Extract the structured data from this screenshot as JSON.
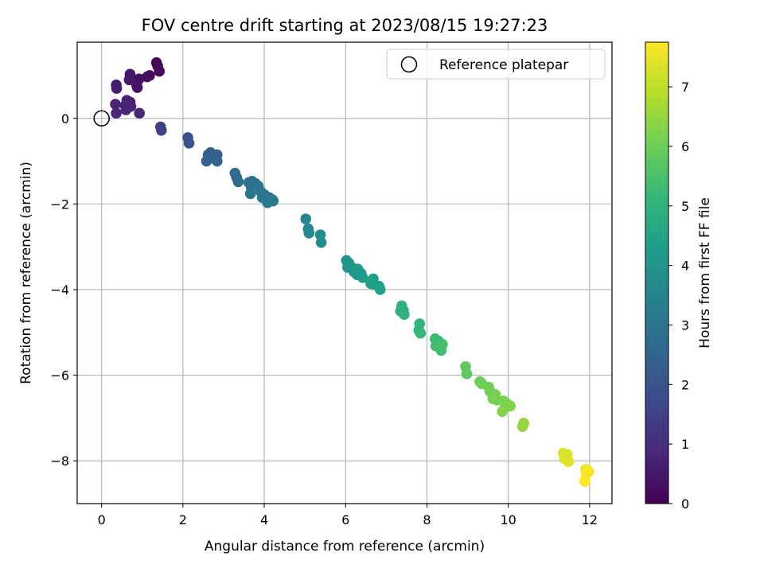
{
  "chart_data": {
    "type": "scatter",
    "title": "FOV centre drift starting at 2023/08/15 19:27:23",
    "xlabel": "Angular distance from reference (arcmin)",
    "ylabel": "Rotation from reference (arcmin)",
    "xlim": [
      -0.6,
      12.55
    ],
    "ylim": [
      -9.0,
      1.78
    ],
    "x_ticks": [
      0,
      2,
      4,
      6,
      8,
      10,
      12
    ],
    "x_tick_labels": [
      "0",
      "2",
      "4",
      "6",
      "8",
      "10",
      "12"
    ],
    "y_ticks": [
      0,
      -2,
      -4,
      -6,
      -8
    ],
    "y_tick_labels": [
      "0",
      "−2",
      "−4",
      "−6",
      "−8"
    ],
    "grid": true,
    "legend": {
      "position": "upper right",
      "entries": [
        {
          "label": "Reference platepar",
          "marker": "open-circle"
        }
      ]
    },
    "reference_point": {
      "x": 0,
      "y": 0
    },
    "colorbar": {
      "label": "Hours from first FF file",
      "colormap": "viridis",
      "min": 0,
      "max": 7.75,
      "ticks": [
        0,
        1,
        2,
        3,
        4,
        5,
        6,
        7
      ],
      "tick_labels": [
        "0",
        "1",
        "2",
        "3",
        "4",
        "5",
        "6",
        "7"
      ],
      "colors": [
        "#440154",
        "#482878",
        "#3e4989",
        "#31688e",
        "#26828e",
        "#1f9e89",
        "#35b779",
        "#6ece58",
        "#b5de2b",
        "#fde725"
      ]
    },
    "points": [
      {
        "x": 1.35,
        "y": 1.3,
        "t": 0.05
      },
      {
        "x": 1.38,
        "y": 1.22,
        "t": 0.1
      },
      {
        "x": 1.42,
        "y": 1.1,
        "t": 0.15
      },
      {
        "x": 1.18,
        "y": 1.0,
        "t": 0.2
      },
      {
        "x": 1.12,
        "y": 0.97,
        "t": 0.25
      },
      {
        "x": 0.92,
        "y": 0.92,
        "t": 0.3
      },
      {
        "x": 0.86,
        "y": 0.78,
        "t": 0.35
      },
      {
        "x": 0.88,
        "y": 0.72,
        "t": 0.4
      },
      {
        "x": 0.7,
        "y": 1.03,
        "t": 0.45
      },
      {
        "x": 0.68,
        "y": 0.9,
        "t": 0.5
      },
      {
        "x": 0.36,
        "y": 0.78,
        "t": 0.6
      },
      {
        "x": 0.37,
        "y": 0.7,
        "t": 0.65
      },
      {
        "x": 0.62,
        "y": 0.42,
        "t": 0.7
      },
      {
        "x": 0.7,
        "y": 0.38,
        "t": 0.72
      },
      {
        "x": 0.58,
        "y": 0.3,
        "t": 0.75
      },
      {
        "x": 0.72,
        "y": 0.28,
        "t": 0.78
      },
      {
        "x": 0.34,
        "y": 0.33,
        "t": 0.8
      },
      {
        "x": 0.6,
        "y": 0.2,
        "t": 0.82
      },
      {
        "x": 0.36,
        "y": 0.12,
        "t": 0.85
      },
      {
        "x": 0.93,
        "y": 0.12,
        "t": 0.9
      },
      {
        "x": 1.45,
        "y": -0.2,
        "t": 1.5
      },
      {
        "x": 1.47,
        "y": -0.28,
        "t": 1.55
      },
      {
        "x": 2.12,
        "y": -0.45,
        "t": 2.0
      },
      {
        "x": 2.15,
        "y": -0.58,
        "t": 2.05
      },
      {
        "x": 2.62,
        "y": -0.85,
        "t": 2.3
      },
      {
        "x": 2.68,
        "y": -0.8,
        "t": 2.32
      },
      {
        "x": 2.84,
        "y": -0.85,
        "t": 2.35
      },
      {
        "x": 2.84,
        "y": -1.0,
        "t": 2.38
      },
      {
        "x": 2.58,
        "y": -1.0,
        "t": 2.4
      },
      {
        "x": 2.7,
        "y": -0.92,
        "t": 2.42
      },
      {
        "x": 3.28,
        "y": -1.28,
        "t": 2.7
      },
      {
        "x": 3.32,
        "y": -1.38,
        "t": 2.72
      },
      {
        "x": 3.36,
        "y": -1.48,
        "t": 2.75
      },
      {
        "x": 3.62,
        "y": -1.5,
        "t": 2.85
      },
      {
        "x": 3.7,
        "y": -1.47,
        "t": 2.88
      },
      {
        "x": 3.78,
        "y": -1.52,
        "t": 2.9
      },
      {
        "x": 3.68,
        "y": -1.62,
        "t": 2.92
      },
      {
        "x": 3.85,
        "y": -1.58,
        "t": 2.95
      },
      {
        "x": 3.66,
        "y": -1.76,
        "t": 2.98
      },
      {
        "x": 3.92,
        "y": -1.72,
        "t": 3.0
      },
      {
        "x": 4.0,
        "y": -1.78,
        "t": 3.02
      },
      {
        "x": 3.95,
        "y": -1.85,
        "t": 3.05
      },
      {
        "x": 4.12,
        "y": -1.85,
        "t": 3.08
      },
      {
        "x": 4.2,
        "y": -1.9,
        "t": 3.1
      },
      {
        "x": 4.08,
        "y": -1.97,
        "t": 3.12
      },
      {
        "x": 4.22,
        "y": -1.93,
        "t": 3.15
      },
      {
        "x": 5.02,
        "y": -2.35,
        "t": 3.6
      },
      {
        "x": 5.08,
        "y": -2.58,
        "t": 3.65
      },
      {
        "x": 5.1,
        "y": -2.68,
        "t": 3.7
      },
      {
        "x": 5.38,
        "y": -2.72,
        "t": 3.75
      },
      {
        "x": 5.4,
        "y": -2.9,
        "t": 3.8
      },
      {
        "x": 6.02,
        "y": -3.32,
        "t": 4.0
      },
      {
        "x": 6.08,
        "y": -3.38,
        "t": 4.02
      },
      {
        "x": 6.05,
        "y": -3.48,
        "t": 4.05
      },
      {
        "x": 6.18,
        "y": -3.5,
        "t": 4.07
      },
      {
        "x": 6.2,
        "y": -3.58,
        "t": 4.1
      },
      {
        "x": 6.3,
        "y": -3.52,
        "t": 4.12
      },
      {
        "x": 6.28,
        "y": -3.65,
        "t": 4.15
      },
      {
        "x": 6.38,
        "y": -3.62,
        "t": 4.18
      },
      {
        "x": 6.42,
        "y": -3.72,
        "t": 4.2
      },
      {
        "x": 6.68,
        "y": -3.75,
        "t": 4.3
      },
      {
        "x": 6.7,
        "y": -3.88,
        "t": 4.32
      },
      {
        "x": 6.62,
        "y": -3.86,
        "t": 4.35
      },
      {
        "x": 6.82,
        "y": -3.92,
        "t": 4.38
      },
      {
        "x": 6.85,
        "y": -4.0,
        "t": 4.4
      },
      {
        "x": 7.38,
        "y": -4.38,
        "t": 4.9
      },
      {
        "x": 7.35,
        "y": -4.5,
        "t": 4.92
      },
      {
        "x": 7.42,
        "y": -4.48,
        "t": 4.95
      },
      {
        "x": 7.44,
        "y": -4.58,
        "t": 4.97
      },
      {
        "x": 7.82,
        "y": -4.8,
        "t": 5.1
      },
      {
        "x": 7.8,
        "y": -4.95,
        "t": 5.12
      },
      {
        "x": 7.84,
        "y": -5.02,
        "t": 5.15
      },
      {
        "x": 8.2,
        "y": -5.15,
        "t": 5.3
      },
      {
        "x": 8.28,
        "y": -5.2,
        "t": 5.32
      },
      {
        "x": 8.22,
        "y": -5.32,
        "t": 5.35
      },
      {
        "x": 8.38,
        "y": -5.28,
        "t": 5.38
      },
      {
        "x": 8.35,
        "y": -5.42,
        "t": 5.4
      },
      {
        "x": 8.3,
        "y": -5.35,
        "t": 5.42
      },
      {
        "x": 8.95,
        "y": -5.8,
        "t": 5.8
      },
      {
        "x": 8.98,
        "y": -5.97,
        "t": 5.82
      },
      {
        "x": 9.3,
        "y": -6.15,
        "t": 6.0
      },
      {
        "x": 9.35,
        "y": -6.2,
        "t": 6.02
      },
      {
        "x": 9.52,
        "y": -6.28,
        "t": 6.05
      },
      {
        "x": 9.55,
        "y": -6.38,
        "t": 6.08
      },
      {
        "x": 9.68,
        "y": -6.45,
        "t": 6.1
      },
      {
        "x": 9.62,
        "y": -6.55,
        "t": 6.12
      },
      {
        "x": 9.72,
        "y": -6.58,
        "t": 6.15
      },
      {
        "x": 9.88,
        "y": -6.6,
        "t": 6.18
      },
      {
        "x": 9.95,
        "y": -6.65,
        "t": 6.2
      },
      {
        "x": 9.92,
        "y": -6.75,
        "t": 6.22
      },
      {
        "x": 10.05,
        "y": -6.72,
        "t": 6.25
      },
      {
        "x": 9.85,
        "y": -6.85,
        "t": 6.28
      },
      {
        "x": 10.38,
        "y": -7.12,
        "t": 6.5
      },
      {
        "x": 10.35,
        "y": -7.2,
        "t": 6.52
      },
      {
        "x": 11.35,
        "y": -7.82,
        "t": 7.3
      },
      {
        "x": 11.45,
        "y": -7.85,
        "t": 7.32
      },
      {
        "x": 11.38,
        "y": -7.95,
        "t": 7.35
      },
      {
        "x": 11.48,
        "y": -8.02,
        "t": 7.38
      },
      {
        "x": 11.9,
        "y": -8.2,
        "t": 7.6
      },
      {
        "x": 11.98,
        "y": -8.25,
        "t": 7.65
      },
      {
        "x": 11.92,
        "y": -8.32,
        "t": 7.7
      },
      {
        "x": 11.88,
        "y": -8.48,
        "t": 7.73
      }
    ]
  }
}
